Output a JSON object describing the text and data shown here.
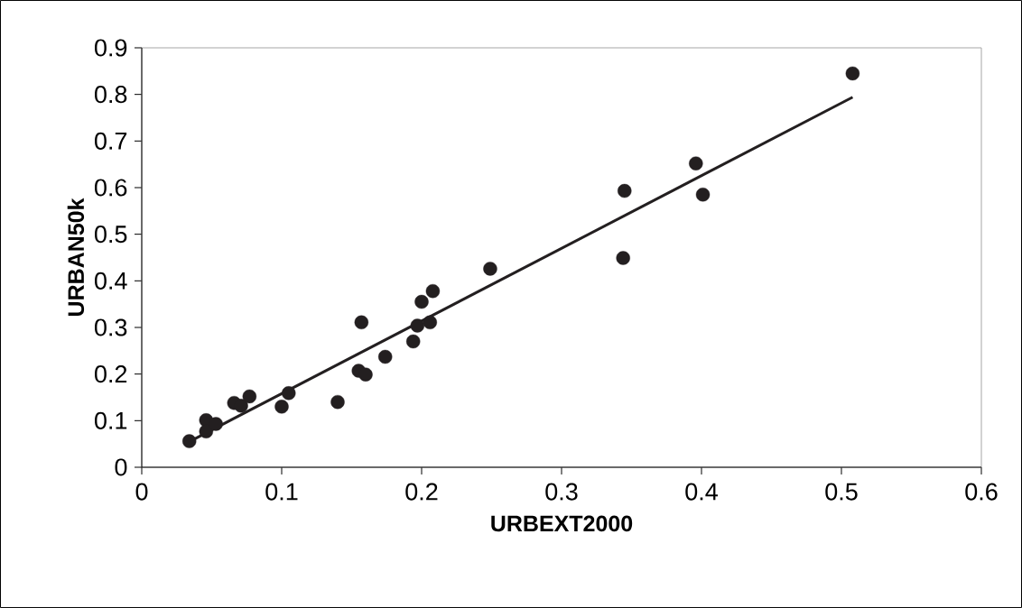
{
  "chart_data": {
    "type": "scatter",
    "xlabel": "URBEXT2000",
    "ylabel": "URBAN50k",
    "xlim": [
      0,
      0.6
    ],
    "ylim": [
      0,
      0.9
    ],
    "xticks": [
      0,
      0.1,
      0.2,
      0.3,
      0.4,
      0.5,
      0.6
    ],
    "yticks": [
      0,
      0.1,
      0.2,
      0.3,
      0.4,
      0.5,
      0.6,
      0.7,
      0.8,
      0.9
    ],
    "series": [
      {
        "type": "scatter",
        "marker": "circle",
        "color": "#231f20",
        "x": [
          0.034,
          0.046,
          0.046,
          0.053,
          0.066,
          0.071,
          0.077,
          0.1,
          0.105,
          0.14,
          0.157,
          0.155,
          0.16,
          0.174,
          0.194,
          0.197,
          0.206,
          0.2,
          0.208,
          0.249,
          0.345,
          0.344,
          0.396,
          0.401,
          0.508
        ],
        "values": [
          0.056,
          0.101,
          0.077,
          0.093,
          0.138,
          0.132,
          0.152,
          0.13,
          0.159,
          0.14,
          0.311,
          0.207,
          0.199,
          0.237,
          0.27,
          0.304,
          0.311,
          0.355,
          0.378,
          0.426,
          0.593,
          0.449,
          0.652,
          0.585,
          0.845
        ]
      },
      {
        "type": "line",
        "color": "#231f20",
        "x": [
          0.034,
          0.508
        ],
        "values": [
          0.055,
          0.794
        ],
        "marker": "none",
        "line_style": "solid"
      }
    ]
  }
}
